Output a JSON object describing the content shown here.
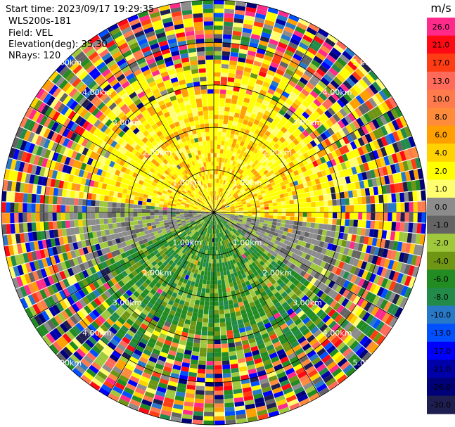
{
  "header": {
    "start_time": "Start time: 2023/09/17 19:29:35",
    "instrument": "WLS200s-181",
    "field": "Field: VEL",
    "elevation": "Elevation(deg): 35.30",
    "nrays": "NRays: 120"
  },
  "colorbar": {
    "unit": "m/s",
    "ticks": [
      "26.0",
      "21.0",
      "17.0",
      "13.0",
      "10.0",
      "8.0",
      "6.0",
      "4.0",
      "2.0",
      "1.0",
      "0.0",
      "-1.0",
      "-2.0",
      "-4.0",
      "-6.0",
      "-8.0",
      "-10.0",
      "-13.0",
      "-17.0",
      "-21.0",
      "-26.0",
      "-30.0"
    ],
    "colors": [
      "#ff2a8a",
      "#ff0a14",
      "#ff3c14",
      "#ff6a5a",
      "#ff7a4c",
      "#ff8c3a",
      "#ffa000",
      "#ffd200",
      "#ffff00",
      "#ffff70",
      "#8c8c8c",
      "#646464",
      "#a0c83c",
      "#6e9614",
      "#228b22",
      "#238b4a",
      "#2878c8",
      "#0050ff",
      "#0000ff",
      "#0000aa",
      "#000078",
      "#1e1e50"
    ]
  },
  "chart_data": {
    "type": "heatmap",
    "projection": "polar-ppi",
    "field": "VEL",
    "unit": "m/s",
    "nrays": 120,
    "max_range_km": 5.0,
    "range_rings_km": [
      1.0,
      2.0,
      3.0,
      4.0,
      5.0
    ],
    "ring_labels": [
      "1.00km",
      "2.00km",
      "3.00km",
      "4.00km",
      "5.00km"
    ],
    "radial_spokes_deg": [
      0,
      30,
      60,
      90,
      120,
      150,
      180,
      210,
      240,
      270,
      300,
      330
    ],
    "velocity_by_sector": [
      {
        "sector": "north",
        "approx_value": 2.0
      },
      {
        "sector": "west-center",
        "approx_value": 0.0
      },
      {
        "sector": "south",
        "approx_value": -6.0
      },
      {
        "sector": "outer-range",
        "approx_value": "noise"
      }
    ]
  }
}
